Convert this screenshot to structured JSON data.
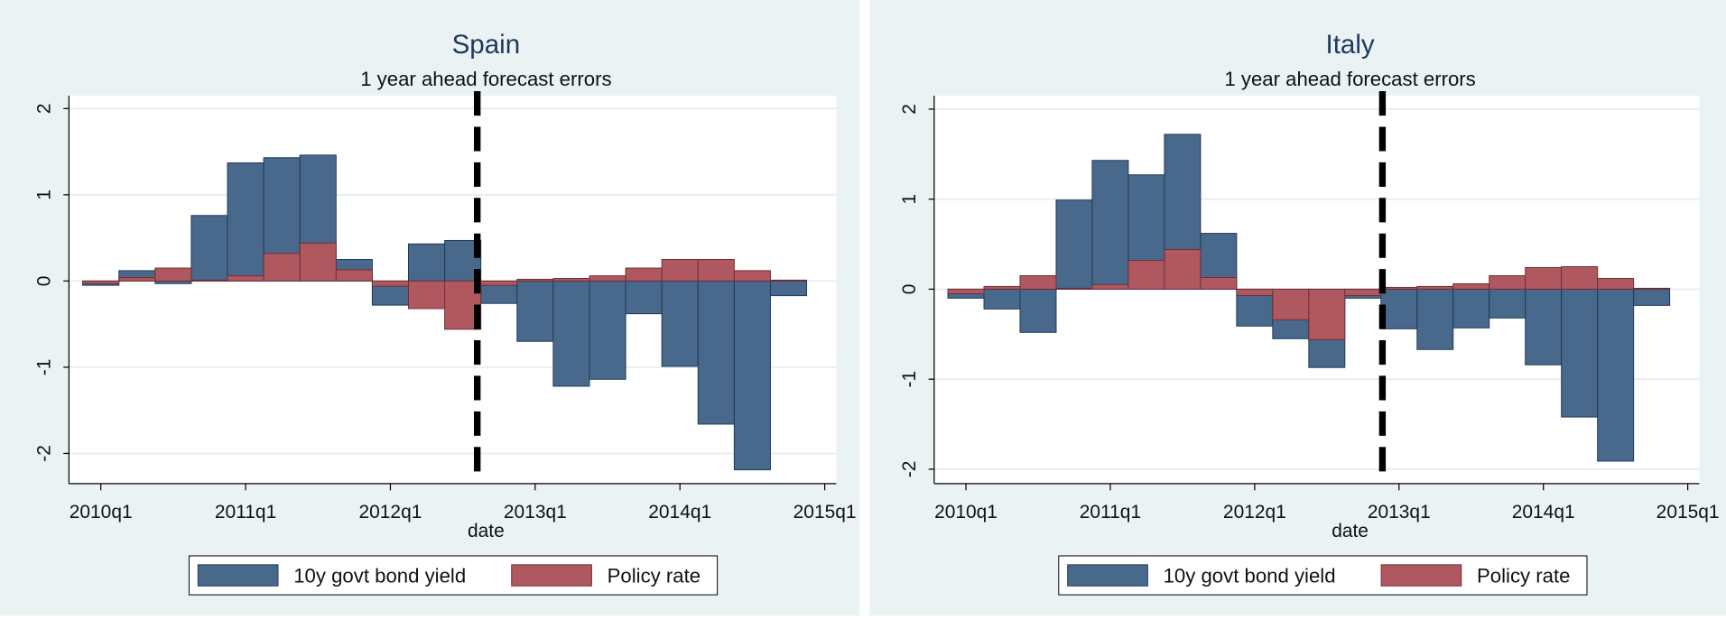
{
  "chart_data": [
    {
      "type": "bar",
      "title": "Spain",
      "subtitle": "1 year ahead forecast errors",
      "x_label": "date",
      "x": [
        2010,
        2010.25,
        2010.5,
        2010.75,
        2011,
        2011.25,
        2011.5,
        2011.75,
        2012,
        2012.25,
        2012.5,
        2012.75,
        2013,
        2013.25,
        2013.5,
        2013.75,
        2014,
        2014.25,
        2014.5,
        2014.75
      ],
      "series": [
        {
          "name": "10y govt bond yield",
          "color": "#48698c",
          "values": [
            -0.05,
            0.12,
            -0.03,
            0.76,
            1.37,
            1.43,
            1.46,
            0.25,
            -0.28,
            0.43,
            0.47,
            -0.26,
            -0.7,
            -1.22,
            -1.14,
            -0.38,
            -0.99,
            -1.66,
            -2.19,
            -0.17
          ]
        },
        {
          "name": "Policy rate",
          "color": "#b0585f",
          "values": [
            -0.03,
            0.04,
            0.15,
            0.01,
            0.06,
            0.32,
            0.44,
            0.13,
            -0.06,
            -0.32,
            -0.56,
            -0.05,
            0.02,
            0.03,
            0.06,
            0.15,
            0.25,
            0.25,
            0.12,
            0.01
          ]
        }
      ],
      "xlim": [
        2009.78,
        2015.08
      ],
      "xticks": [
        {
          "value": 2010,
          "label": "2010q1"
        },
        {
          "value": 2011,
          "label": "2011q1"
        },
        {
          "value": 2012,
          "label": "2012q1"
        },
        {
          "value": 2013,
          "label": "2013q1"
        },
        {
          "value": 2014,
          "label": "2014q1"
        },
        {
          "value": 2015,
          "label": "2015q1"
        }
      ],
      "ylim": [
        -2.35,
        2.15
      ],
      "yticks": [
        -2,
        -1,
        0,
        1,
        2
      ],
      "grid": true,
      "vline": 2012.6
    },
    {
      "type": "bar",
      "title": "Italy",
      "subtitle": "1 year ahead forecast errors",
      "x_label": "date",
      "x": [
        2010,
        2010.25,
        2010.5,
        2010.75,
        2011,
        2011.25,
        2011.5,
        2011.75,
        2012,
        2012.25,
        2012.5,
        2012.75,
        2013,
        2013.25,
        2013.5,
        2013.75,
        2014,
        2014.25,
        2014.5,
        2014.75
      ],
      "series": [
        {
          "name": "10y govt bond yield",
          "color": "#48698c",
          "values": [
            -0.1,
            -0.22,
            -0.48,
            0.99,
            1.43,
            1.27,
            1.72,
            0.62,
            -0.41,
            -0.55,
            -0.87,
            -0.1,
            -0.44,
            -0.67,
            -0.43,
            -0.32,
            -0.84,
            -1.42,
            -1.91,
            -0.18
          ]
        },
        {
          "name": "Policy rate",
          "color": "#b0585f",
          "values": [
            -0.05,
            0.03,
            0.15,
            0.01,
            0.05,
            0.32,
            0.44,
            0.13,
            -0.07,
            -0.34,
            -0.56,
            -0.07,
            0.02,
            0.03,
            0.06,
            0.15,
            0.24,
            0.25,
            0.12,
            0.01
          ]
        }
      ],
      "xlim": [
        2009.78,
        2015.08
      ],
      "xticks": [
        {
          "value": 2010,
          "label": "2010q1"
        },
        {
          "value": 2011,
          "label": "2011q1"
        },
        {
          "value": 2012,
          "label": "2012q1"
        },
        {
          "value": 2013,
          "label": "2013q1"
        },
        {
          "value": 2014,
          "label": "2014q1"
        },
        {
          "value": 2015,
          "label": "2015q1"
        }
      ],
      "ylim": [
        -2.16,
        2.15
      ],
      "yticks": [
        -2,
        -1,
        0,
        1,
        2
      ],
      "grid": true,
      "vline": 2012.885
    }
  ]
}
